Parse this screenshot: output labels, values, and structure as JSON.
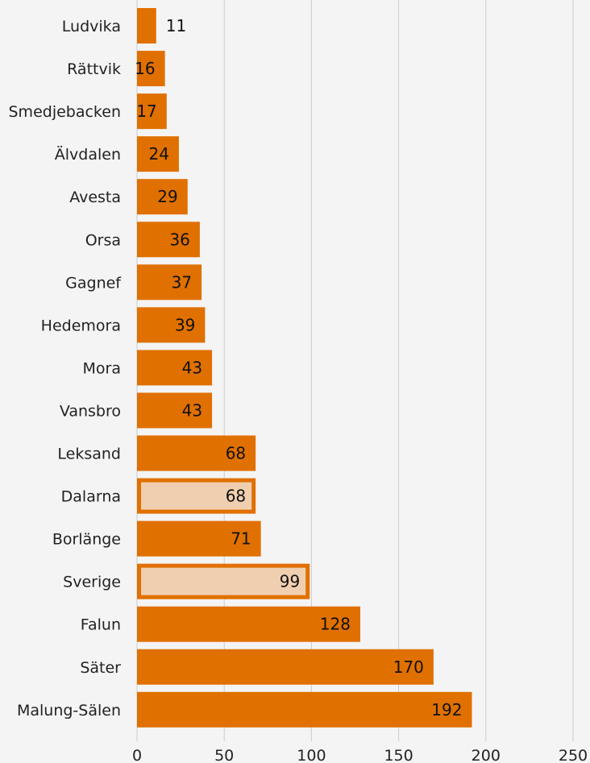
{
  "chart_data": {
    "type": "bar",
    "orientation": "horizontal",
    "categories": [
      "Ludvika",
      "Rättvik",
      "Smedjebacken",
      "Älvdalen",
      "Avesta",
      "Orsa",
      "Gagnef",
      "Hedemora",
      "Mora",
      "Vansbro",
      "Leksand",
      "Dalarna",
      "Borlänge",
      "Sverige",
      "Falun",
      "Säter",
      "Malung-Sälen"
    ],
    "values": [
      11,
      16,
      17,
      24,
      29,
      36,
      37,
      39,
      43,
      43,
      68,
      68,
      71,
      99,
      128,
      170,
      192
    ],
    "value_labels": [
      "11",
      "16",
      "17",
      "24",
      "29",
      "36",
      "37",
      "39",
      "43",
      "43",
      "68",
      "68",
      "71",
      "99",
      "128",
      "170",
      "192"
    ],
    "highlighted": [
      "Dalarna",
      "Sverige"
    ],
    "xlim": [
      0,
      250
    ],
    "xticks": [
      0,
      50,
      100,
      150,
      200,
      250
    ],
    "xtick_labels": [
      "0",
      "50",
      "100",
      "150",
      "200",
      "250"
    ],
    "grid": true,
    "colors": {
      "bar": "#e07000",
      "highlight_fill": "#f0cfb0",
      "grid": "#cccccc",
      "background": "#f4f4f4"
    }
  }
}
